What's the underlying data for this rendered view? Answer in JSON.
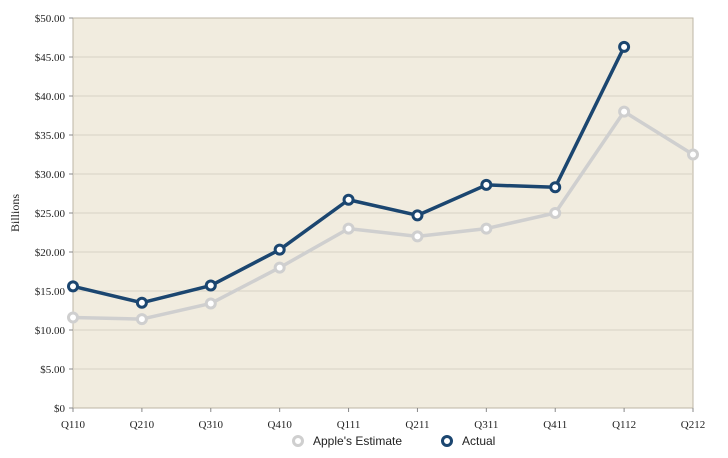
{
  "chart_data": {
    "type": "line",
    "categories": [
      "Q110",
      "Q210",
      "Q310",
      "Q410",
      "Q111",
      "Q211",
      "Q311",
      "Q411",
      "Q112",
      "Q212"
    ],
    "y_ticks": [
      "$0",
      "$5.00",
      "$10.00",
      "$15.00",
      "$20.00",
      "$25.00",
      "$30.00",
      "$35.00",
      "$40.00",
      "$45.00",
      "$50.00"
    ],
    "ylabel": "Billions",
    "ylim": [
      0,
      50
    ],
    "grid": true,
    "legend_position": "bottom-center",
    "series": [
      {
        "name": "Apple's Estimate",
        "color": "#cfcfcf",
        "values": [
          11.6,
          11.4,
          13.4,
          18.0,
          23.0,
          22.0,
          23.0,
          25.0,
          38.0,
          32.5
        ]
      },
      {
        "name": "Actual",
        "color": "#1b4670",
        "values": [
          15.6,
          13.5,
          15.7,
          20.3,
          26.7,
          24.7,
          28.6,
          28.3,
          46.3,
          null
        ]
      }
    ],
    "plot_background": "#f1ecdf",
    "gridline_color": "#d8d2c4"
  }
}
